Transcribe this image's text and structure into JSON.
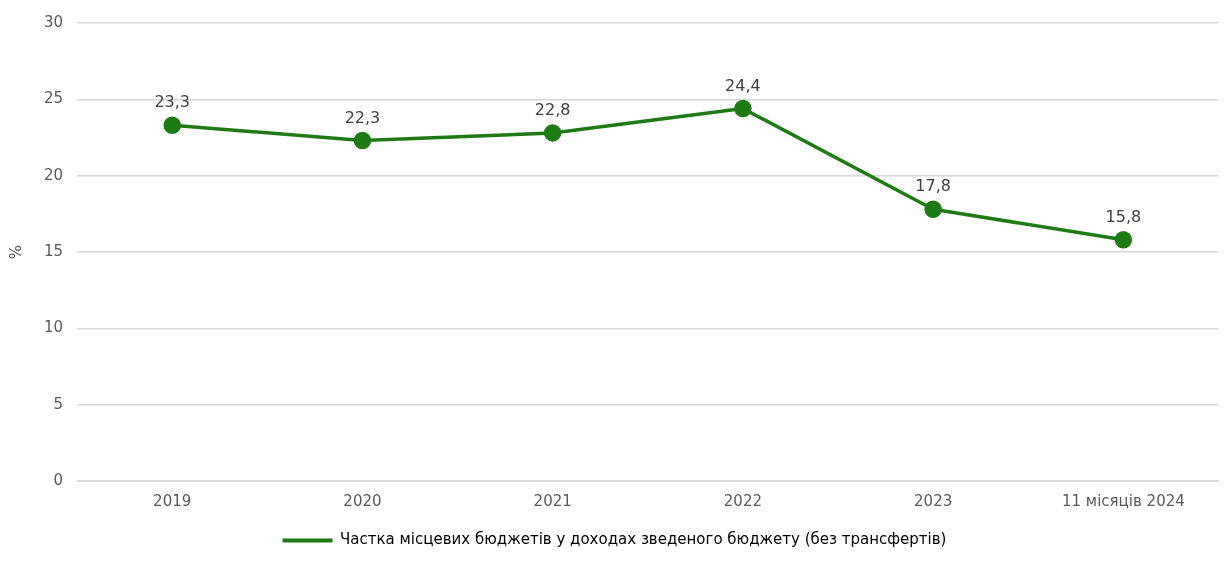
{
  "chart_data": {
    "type": "line",
    "ylabel": "%",
    "categories": [
      "2019",
      "2020",
      "2021",
      "2022",
      "2023",
      "11 місяців 2024"
    ],
    "series": [
      {
        "name": "Частка місцевих бюджетів у доходах зведеного бюджету (без трансфертів)",
        "color": "#1e7b14",
        "values": [
          23.3,
          22.3,
          22.8,
          24.4,
          17.8,
          15.8
        ],
        "value_labels": [
          "23,3",
          "22,3",
          "22,8",
          "24,4",
          "17,8",
          "15,8"
        ]
      }
    ],
    "ylim": [
      0,
      30
    ],
    "yticks": [
      0,
      5,
      10,
      15,
      20,
      25,
      30
    ],
    "grid": "y",
    "legend": "bottom",
    "marker": "circle",
    "line_style": "solid"
  }
}
